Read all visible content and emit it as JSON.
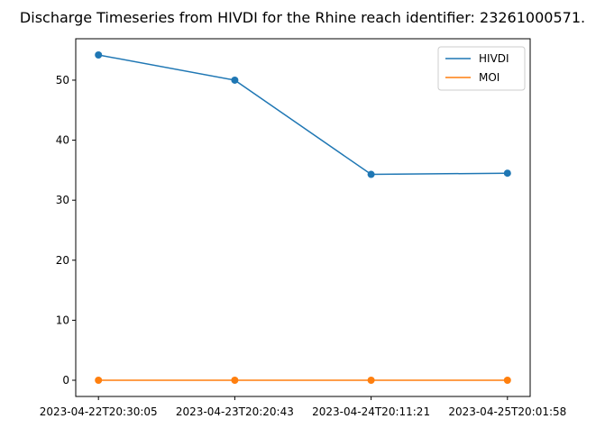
{
  "chart_data": {
    "type": "line",
    "title": "Discharge Timeseries from HIVDI for the Rhine reach identifier: 23261000571.",
    "xlabel": "",
    "ylabel": "",
    "categories": [
      "2023-04-22T20:30:05",
      "2023-04-23T20:20:43",
      "2023-04-24T20:11:21",
      "2023-04-25T20:01:58"
    ],
    "series": [
      {
        "name": "HIVDI",
        "color": "#1f77b4",
        "values": [
          54.2,
          50.0,
          34.3,
          34.5
        ]
      },
      {
        "name": "MOI",
        "color": "#ff7f0e",
        "values": [
          0,
          0,
          0,
          0
        ]
      }
    ],
    "ylim": [
      -2.7,
      56.9
    ],
    "yticks": [
      0,
      10,
      20,
      30,
      40,
      50
    ],
    "grid": false,
    "legend_position": "top-right",
    "markers": true
  }
}
